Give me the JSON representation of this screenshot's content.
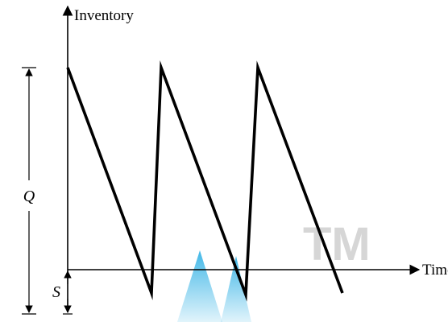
{
  "diagram": {
    "y_axis_label": "Inventory",
    "x_axis_label": "Time",
    "order_quantity_label": "Q",
    "shortage_label": "S",
    "watermark_text": "TM",
    "colors": {
      "line": "#000000",
      "watermark_gray": "#d6d6d6",
      "watermark_cyan": "#38b4e6"
    }
  }
}
